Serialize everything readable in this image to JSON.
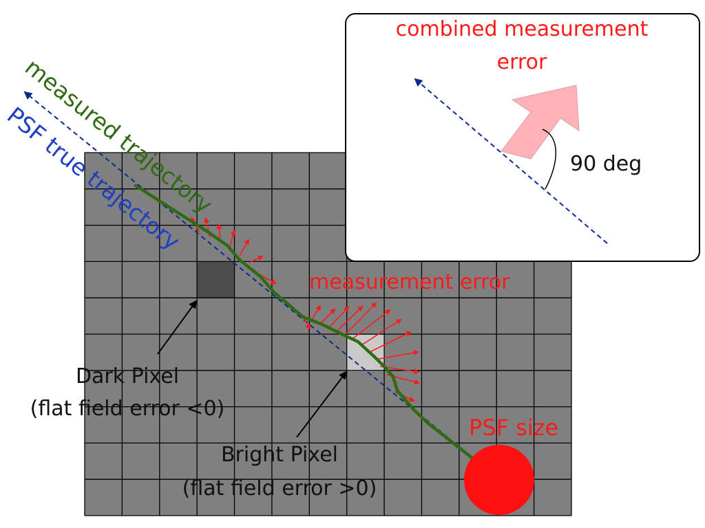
{
  "labels": {
    "measured_trajectory": "measured trajectory",
    "psf_true_trajectory": "PSF true trajectory",
    "measurement_error": "measurement error",
    "combined_title_line1": "combined measurement",
    "combined_title_line2": "error",
    "angle": "90 deg",
    "dark_pixel_line1": "Dark Pixel",
    "dark_pixel_line2": "(flat field error <0)",
    "bright_pixel_line1": "Bright Pixel",
    "bright_pixel_line2": "(flat field error >0)",
    "psf_size": "PSF size"
  },
  "colors": {
    "grid_fill": "#808080",
    "grid_line": "#000000",
    "dark_pixel": "#4d4d4d",
    "bright_pixel": "#c9c9c9",
    "measured_trajectory": "#2e6b12",
    "true_trajectory": "#0a2a8c",
    "true_label": "#1f3fc4",
    "error_arrows": "#ff1a1a",
    "error_text": "#ff1a1a",
    "combined_arrow": "#ffb3b8",
    "psf_disk": "#ff1010",
    "text_dark": "#111111"
  },
  "grid": {
    "columns": 13,
    "rows": 10
  }
}
